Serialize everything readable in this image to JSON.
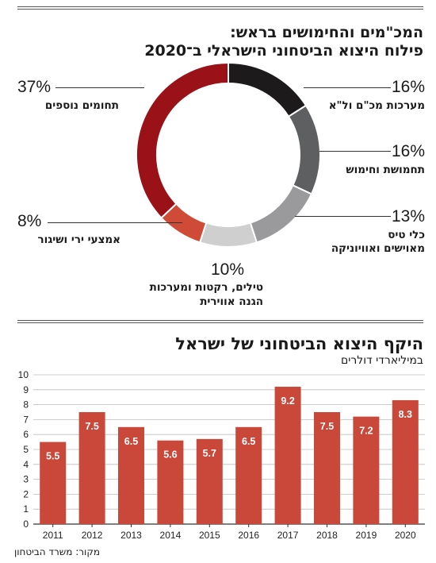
{
  "donut": {
    "title_line1": "המכ\"מים והחימושים בראש:",
    "title_line2": "פילוח היצוא הביטחוני הישראלי ב־2020",
    "segments": [
      {
        "pct": "16%",
        "value": 16,
        "label1": "מערכות מכ\"ם ול\"א",
        "label2": "",
        "color": "#1c1a1b"
      },
      {
        "pct": "16%",
        "value": 16,
        "label1": "תחמושת וחימוש",
        "label2": "",
        "color": "#5e5f61"
      },
      {
        "pct": "13%",
        "value": 13,
        "label1": "כלי טיס",
        "label2": "מאוישים ואוויוניקה",
        "color": "#9a9a9c"
      },
      {
        "pct": "10%",
        "value": 10,
        "label1": "טילים, רקטות ומערכות",
        "label2": "הגנה אווירית",
        "color": "#cfcfd0"
      },
      {
        "pct": "8%",
        "value": 8,
        "label1": "אמצעי ירי ושיגור",
        "label2": "",
        "color": "#d04a38"
      },
      {
        "pct": "37%",
        "value": 37,
        "label1": "תחומים נוספים",
        "label2": "",
        "color": "#9a1218"
      }
    ]
  },
  "bars": {
    "title": "היקף היצוא הביטחוני של ישראל",
    "subtitle": "במיליארדי דולרים",
    "source": "מקור: משרד הביטחון"
  },
  "chart_data": [
    {
      "type": "pie",
      "title": "פילוח היצוא הביטחוני הישראלי ב־2020",
      "categories": [
        "מערכות מכ\"ם ול\"א",
        "תחמושת וחימוש",
        "כלי טיס מאוישים ואוויוניקה",
        "טילים, רקטות ומערכות הגנה אווירית",
        "אמצעי ירי ושיגור",
        "תחומים נוספים"
      ],
      "values": [
        16,
        16,
        13,
        10,
        8,
        37
      ]
    },
    {
      "type": "bar",
      "title": "היקף היצוא הביטחוני של ישראל",
      "ylabel": "במיליארדי דולרים",
      "categories": [
        "2011",
        "2012",
        "2013",
        "2014",
        "2015",
        "2016",
        "2017",
        "2018",
        "2019",
        "2020"
      ],
      "values": [
        5.5,
        7.5,
        6.5,
        5.6,
        5.7,
        6.5,
        9.2,
        7.5,
        7.2,
        8.3
      ],
      "value_labels": [
        "5.5",
        "7.5",
        "6.5",
        "5.6",
        "5.7",
        "6.5",
        "9.2",
        "7.5",
        "7.2",
        "8.3"
      ],
      "yticks": [
        "0",
        "1",
        "2",
        "3",
        "4",
        "5",
        "6",
        "7",
        "8",
        "9",
        "10"
      ],
      "ylim": [
        0,
        10
      ],
      "bar_color": "#c9483a",
      "grid": true
    }
  ]
}
